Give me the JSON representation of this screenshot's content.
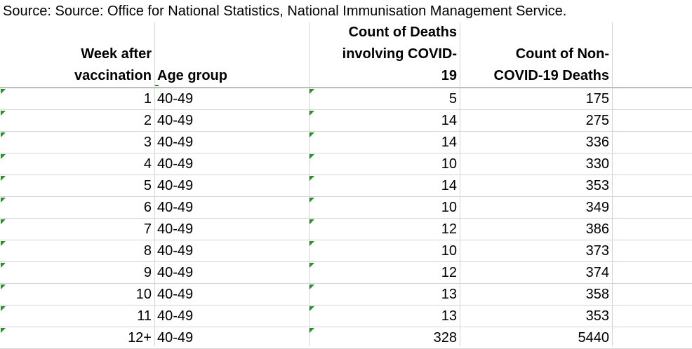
{
  "source_text": "Source: Source: Office for National Statistics, National Immunisation Management Service.",
  "headers": {
    "week": [
      "Week after",
      "vaccination"
    ],
    "age": [
      "Age group"
    ],
    "covid": [
      "Count of Deaths",
      "involving COVID-",
      "19"
    ],
    "noncovid": [
      "Count of Non-",
      "COVID-19 Deaths"
    ]
  },
  "rows": [
    {
      "week": "1",
      "age": "40-49",
      "covid": "5",
      "noncovid": "175"
    },
    {
      "week": "2",
      "age": "40-49",
      "covid": "14",
      "noncovid": "275"
    },
    {
      "week": "3",
      "age": "40-49",
      "covid": "14",
      "noncovid": "336"
    },
    {
      "week": "4",
      "age": "40-49",
      "covid": "10",
      "noncovid": "330"
    },
    {
      "week": "5",
      "age": "40-49",
      "covid": "14",
      "noncovid": "353"
    },
    {
      "week": "6",
      "age": "40-49",
      "covid": "10",
      "noncovid": "349"
    },
    {
      "week": "7",
      "age": "40-49",
      "covid": "12",
      "noncovid": "386"
    },
    {
      "week": "8",
      "age": "40-49",
      "covid": "10",
      "noncovid": "373"
    },
    {
      "week": "9",
      "age": "40-49",
      "covid": "12",
      "noncovid": "374"
    },
    {
      "week": "10",
      "age": "40-49",
      "covid": "13",
      "noncovid": "358"
    },
    {
      "week": "11",
      "age": "40-49",
      "covid": "13",
      "noncovid": "353"
    },
    {
      "week": "12+",
      "age": "40-49",
      "covid": "328",
      "noncovid": "5440"
    }
  ],
  "colors": {
    "gridline": "#d4d4d4",
    "error_flag": "#2e8b2e"
  }
}
